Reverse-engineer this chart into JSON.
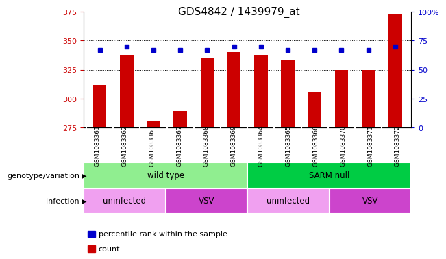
{
  "title": "GDS4842 / 1439979_at",
  "samples": [
    "GSM1083361",
    "GSM1083362",
    "GSM1083363",
    "GSM1083367",
    "GSM1083368",
    "GSM1083369",
    "GSM1083364",
    "GSM1083365",
    "GSM1083366",
    "GSM1083370",
    "GSM1083371",
    "GSM1083372"
  ],
  "counts": [
    312,
    338,
    281,
    289,
    335,
    340,
    338,
    333,
    306,
    325,
    325,
    373
  ],
  "percentiles": [
    67,
    70,
    67,
    67,
    67,
    70,
    70,
    67,
    67,
    67,
    67,
    70
  ],
  "ylim_left": [
    275,
    375
  ],
  "ylim_right": [
    0,
    100
  ],
  "yticks_left": [
    275,
    300,
    325,
    350,
    375
  ],
  "yticks_right": [
    0,
    25,
    50,
    75,
    100
  ],
  "bar_color": "#cc0000",
  "dot_color": "#0000cc",
  "bar_bottom": 275,
  "grid_values": [
    300,
    325,
    350
  ],
  "genotype_groups": [
    {
      "label": "wild type",
      "start": 0,
      "end": 6,
      "color": "#90ee90"
    },
    {
      "label": "SARM null",
      "start": 6,
      "end": 12,
      "color": "#00cc44"
    }
  ],
  "infection_groups": [
    {
      "label": "uninfected",
      "start": 0,
      "end": 3,
      "color": "#f0a0f0"
    },
    {
      "label": "VSV",
      "start": 3,
      "end": 6,
      "color": "#cc44cc"
    },
    {
      "label": "uninfected",
      "start": 6,
      "end": 9,
      "color": "#f0a0f0"
    },
    {
      "label": "VSV",
      "start": 9,
      "end": 12,
      "color": "#cc44cc"
    }
  ],
  "legend_items": [
    {
      "label": "count",
      "color": "#cc0000"
    },
    {
      "label": "percentile rank within the sample",
      "color": "#0000cc"
    }
  ],
  "row_labels": [
    "genotype/variation",
    "infection"
  ],
  "background_color": "#ffffff",
  "plot_bg": "#ffffff",
  "tick_color_left": "#cc0000",
  "tick_color_right": "#0000cc"
}
